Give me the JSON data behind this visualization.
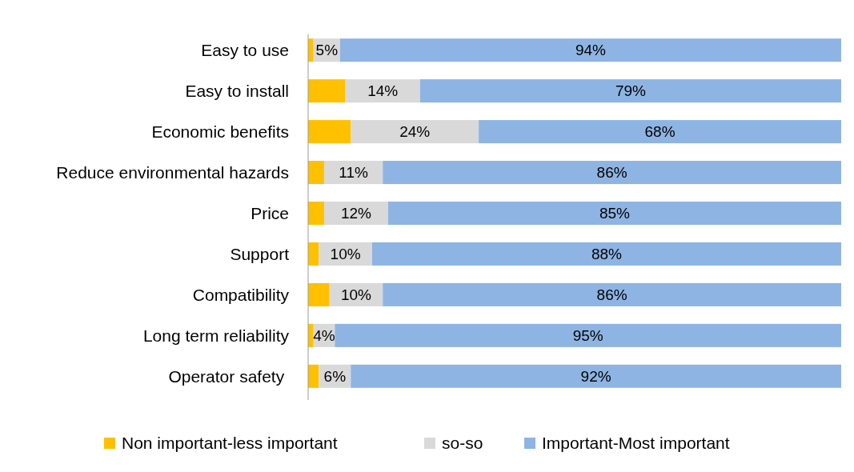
{
  "chart_data": {
    "type": "bar",
    "orientation": "horizontal",
    "stacked": true,
    "categories": [
      "Easy to use",
      "Easy to install",
      "Economic benefits",
      "Reduce environmental hazards",
      "Price",
      "Support",
      "Compatibility",
      "Long term reliability",
      "Operator safety "
    ],
    "xlim": [
      0,
      100
    ],
    "series": [
      {
        "name": "Non important-less important",
        "color": "#ffc000",
        "values": [
          1,
          7,
          8,
          3,
          3,
          2,
          4,
          1,
          2
        ],
        "value_labels": [
          null,
          null,
          null,
          null,
          null,
          null,
          null,
          null,
          null
        ]
      },
      {
        "name": "so-so",
        "color": "#d9d9d9",
        "values": [
          5,
          14,
          24,
          11,
          12,
          10,
          10,
          4,
          6
        ],
        "value_labels": [
          "5%",
          "14%",
          "24%",
          "11%",
          "12%",
          "10%",
          "10%",
          "4%",
          "6%"
        ]
      },
      {
        "name": "Important-Most important",
        "color": "#8eb4e3",
        "values": [
          94,
          79,
          68,
          86,
          85,
          88,
          86,
          95,
          92
        ],
        "value_labels": [
          "94%",
          "79%",
          "68%",
          "86%",
          "85%",
          "88%",
          "86%",
          "95%",
          "92%"
        ]
      }
    ],
    "legend": "bottom"
  }
}
